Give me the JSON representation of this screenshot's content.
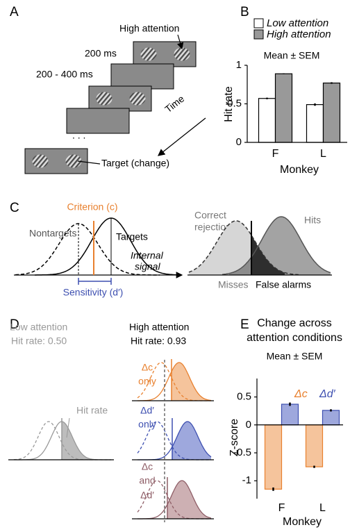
{
  "panel_labels": [
    "A",
    "B",
    "C",
    "D",
    "E"
  ],
  "panel_a": {
    "cue_label": "High attention",
    "interval_1": "200 ms",
    "interval_2": "200 - 400 ms",
    "time_label": "Time",
    "target_label": "Target (change)"
  },
  "panel_c": {
    "criterion": "Criterion (c)",
    "nontargets": "Nontargets",
    "targets": "Targets",
    "internal_signal": [
      "Internal",
      "signal"
    ],
    "sensitivity": "Sensitivity (d′)",
    "correct_rejections": [
      "Correct",
      "rejections"
    ],
    "hits": "Hits",
    "misses": "Misses",
    "false_alarms": "False alarms"
  },
  "panel_d": {
    "low_attention": "Low attention",
    "low_hit_rate": "Hit rate: 0.50",
    "high_attention": "High attention",
    "high_hit_rate": "Hit rate: 0.93",
    "hit_rate_label": "Hit rate",
    "row_1": [
      "Δc",
      "only"
    ],
    "row_2": [
      "Δd′",
      "only"
    ],
    "row_3": [
      "Δc",
      "and",
      "Δd′"
    ]
  },
  "chart_data": [
    {
      "type": "bar",
      "subtitle": "Mean ± SEM",
      "y_label": "Hit rate",
      "x_label": "Monkey",
      "categories": [
        "F",
        "L"
      ],
      "series": [
        {
          "name": "Low attention",
          "color": "#ffffff",
          "edgecolor": "#000000",
          "values": [
            0.57,
            0.49
          ],
          "errors": [
            0.01,
            0.015
          ]
        },
        {
          "name": "High attention",
          "color": "#999999",
          "edgecolor": "#000000",
          "values": [
            0.89,
            0.77
          ],
          "errors": [
            0.005,
            0.01
          ]
        }
      ],
      "ylim": [
        0,
        1
      ],
      "yticks": [
        0,
        0.5,
        1
      ]
    },
    {
      "type": "bar",
      "title": "Change across attention conditions",
      "subtitle": "Mean ± SEM",
      "y_label": "Z-score",
      "x_label": "Monkey",
      "categories": [
        "F",
        "L"
      ],
      "series": [
        {
          "name": "Δc",
          "color": "#f5c49c",
          "edgecolor": "#e8802e",
          "values": [
            -1.15,
            -0.75
          ],
          "errors": [
            0.03,
            0.02
          ]
        },
        {
          "name": "Δd′",
          "color": "#9ea8dd",
          "edgecolor": "#3d4fb0",
          "values": [
            0.37,
            0.26
          ],
          "errors": [
            0.03,
            0.02
          ]
        }
      ],
      "ylim": [
        -1.32,
        0.83
      ],
      "yticks": [
        0.5,
        0,
        -0.5,
        -1
      ]
    }
  ]
}
